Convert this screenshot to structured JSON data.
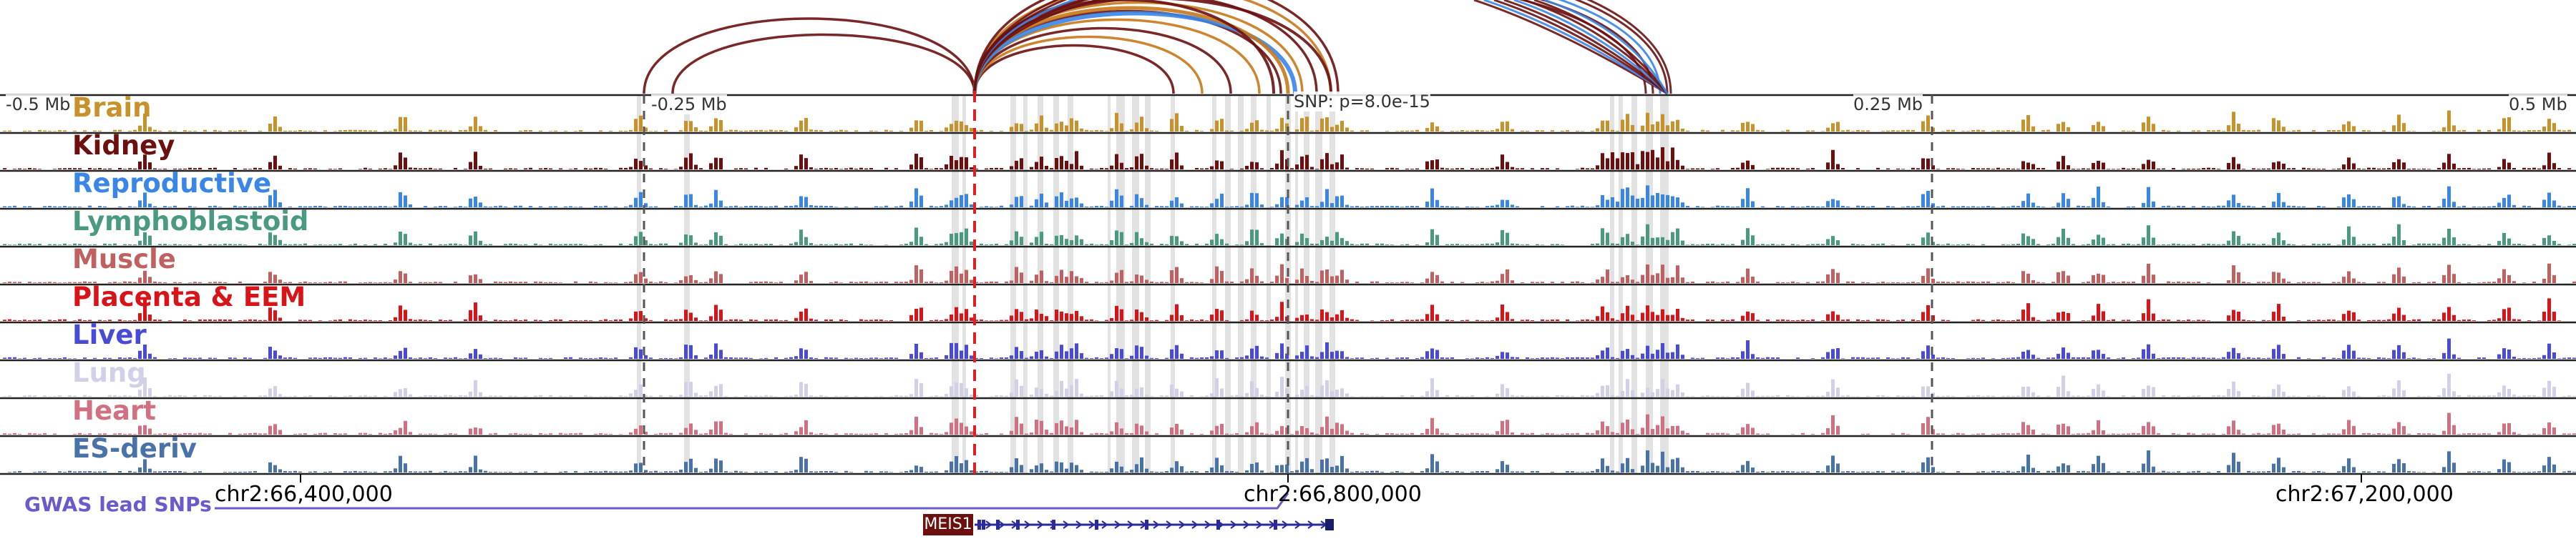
{
  "tracks": [
    {
      "name": "Brain",
      "color": "#c8912a"
    },
    {
      "name": "Kidney",
      "color": "#6b0f0f"
    },
    {
      "name": "Reproductive",
      "color": "#3a86e6"
    },
    {
      "name": "Lymphoblastoid",
      "color": "#4a9a82"
    },
    {
      "name": "Muscle",
      "color": "#c06060"
    },
    {
      "name": "Placenta & EEM",
      "color": "#d81418"
    },
    {
      "name": "Liver",
      "color": "#4a4ad8"
    },
    {
      "name": "Lung",
      "color": "#d0d0e8"
    },
    {
      "name": "Heart",
      "color": "#d07080"
    },
    {
      "name": "ES-deriv",
      "color": "#4872a8"
    }
  ],
  "scale": {
    "left": "-0.5 Mb",
    "quarter_left": "-0.25 Mb",
    "snp": "SNP: p=8.0e-15",
    "quarter_right": "0.25 Mb",
    "right": "0.5 Mb"
  },
  "coordinates": [
    "chr2:66,400,000",
    "chr2:66,800,000",
    "chr2:67,200,000"
  ],
  "gwas_label": "GWAS lead SNPs",
  "gene": {
    "name": "MEIS1"
  },
  "colors": {
    "gwas_line": "#6a5acd",
    "snp_line": "#e02020",
    "highlight": "#d8d8d8",
    "arc_dark": "#6b0f0f",
    "arc_orange": "#c8781a",
    "arc_blue": "#3a86e6"
  }
}
